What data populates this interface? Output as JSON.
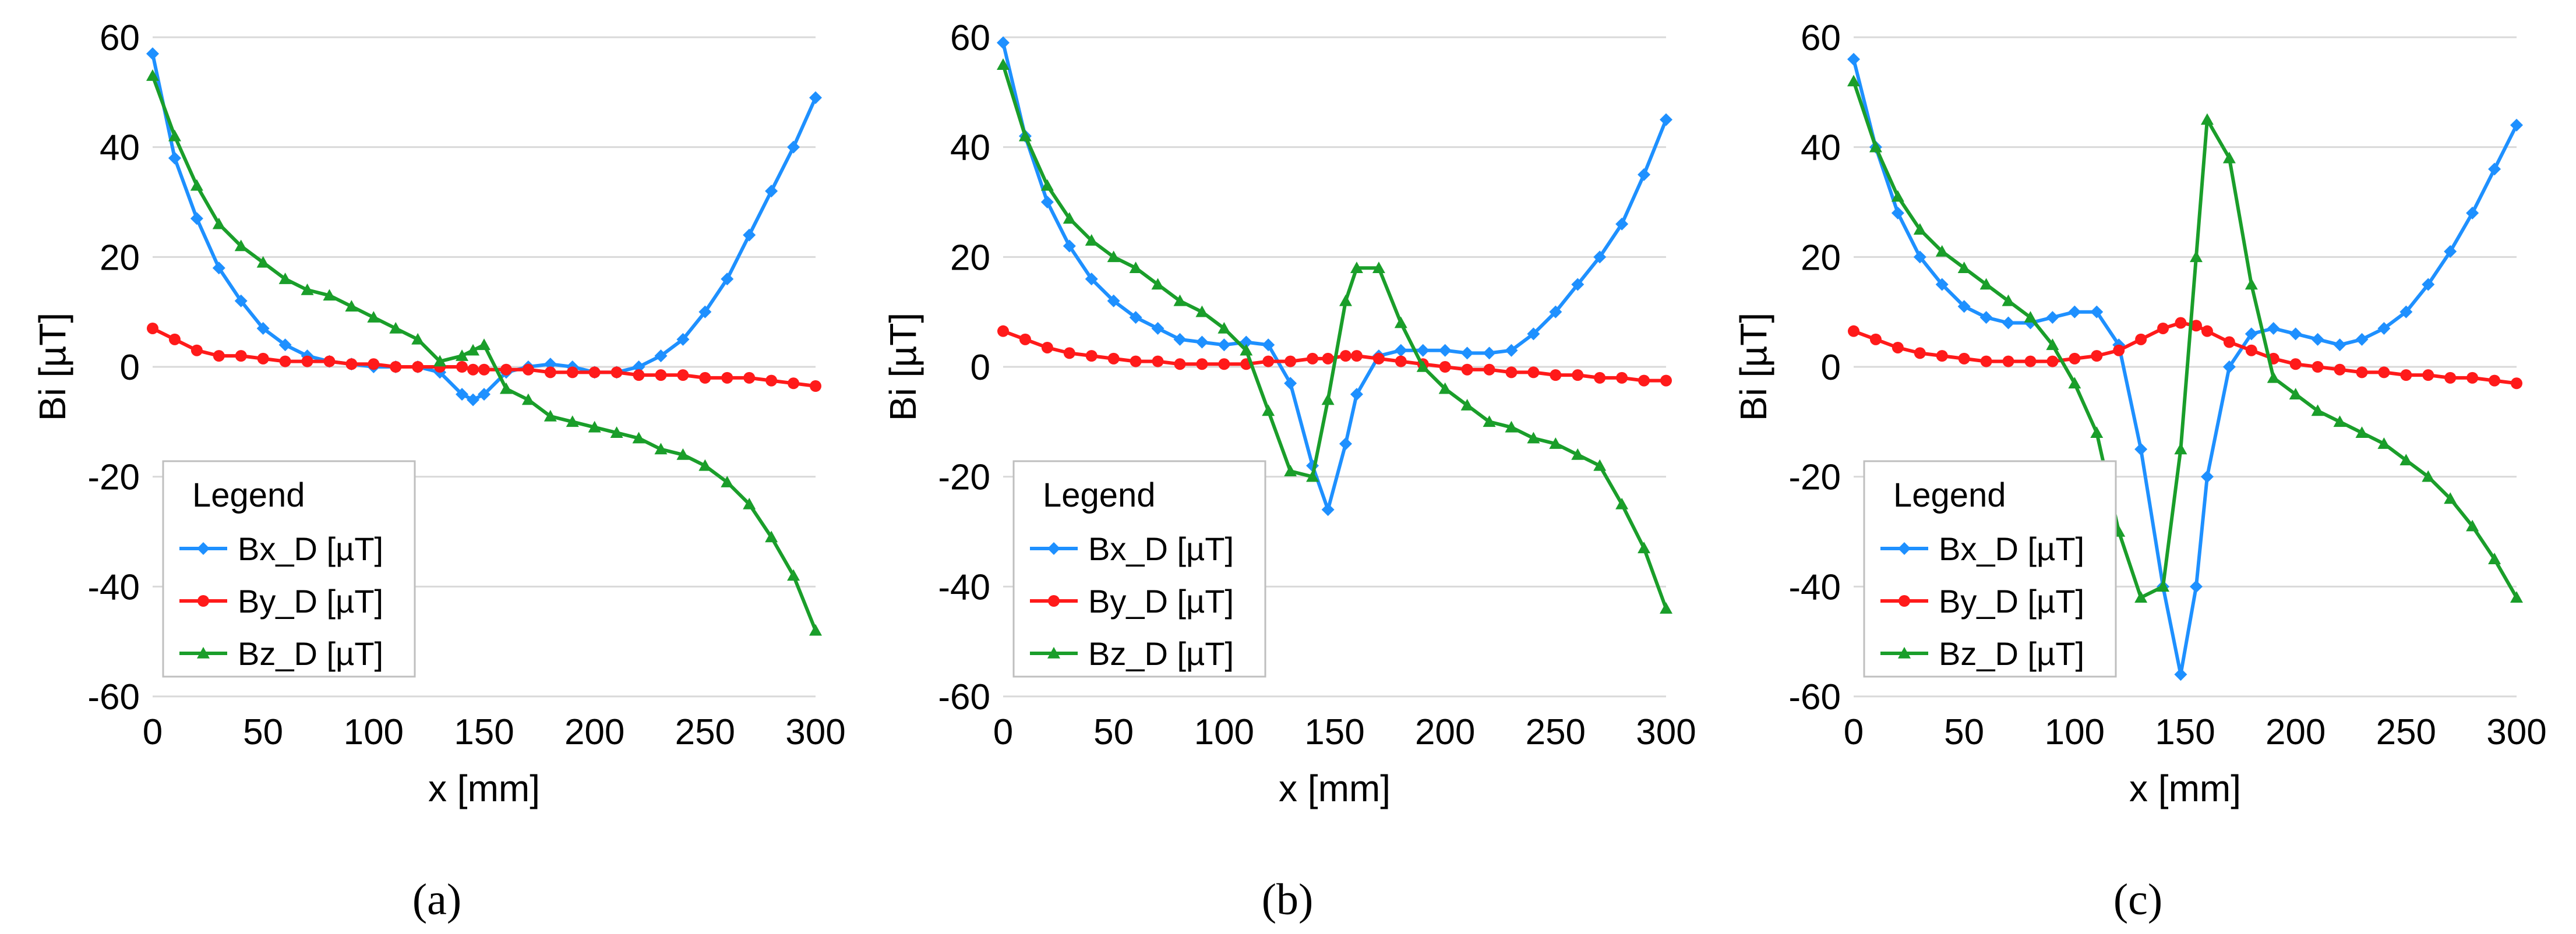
{
  "figure": {
    "panel_labels": [
      "(a)",
      "(b)",
      "(c)"
    ]
  },
  "chart_data": [
    {
      "type": "line",
      "panel": "(a)",
      "xlabel": "x [mm]",
      "ylabel": "Bi [µT]",
      "xlim": [
        0,
        300
      ],
      "ylim": [
        -60,
        60
      ],
      "xticks": [
        0,
        50,
        100,
        150,
        200,
        250,
        300
      ],
      "yticks": [
        -60,
        -40,
        -20,
        0,
        20,
        40,
        60
      ],
      "grid": true,
      "legend": {
        "title": "Legend",
        "placement": "bottom-left"
      },
      "x": [
        0,
        10,
        20,
        30,
        40,
        50,
        60,
        70,
        80,
        90,
        100,
        110,
        120,
        130,
        140,
        145,
        150,
        160,
        170,
        180,
        190,
        200,
        210,
        220,
        230,
        240,
        250,
        260,
        270,
        280,
        290,
        300
      ],
      "series": [
        {
          "name": "Bx_D [µT]",
          "color": "#1e90ff",
          "marker": "diamond",
          "values": [
            57,
            38,
            27,
            18,
            12,
            7,
            4,
            2,
            1,
            0.5,
            0,
            0,
            0,
            -1,
            -5,
            -6,
            -5,
            -1,
            0,
            0.5,
            0,
            -1,
            -1,
            0,
            2,
            5,
            10,
            16,
            24,
            32,
            40,
            49
          ]
        },
        {
          "name": "By_D [µT]",
          "color": "#ff1a1a",
          "marker": "circle",
          "values": [
            7,
            5,
            3,
            2,
            2,
            1.5,
            1,
            1,
            1,
            0.5,
            0.5,
            0,
            0,
            0,
            0,
            -0.5,
            -0.5,
            -0.5,
            -0.5,
            -1,
            -1,
            -1,
            -1,
            -1.5,
            -1.5,
            -1.5,
            -2,
            -2,
            -2,
            -2.5,
            -3,
            -3.5
          ]
        },
        {
          "name": "Bz_D [µT]",
          "color": "#1a9e2a",
          "marker": "triangle",
          "values": [
            53,
            42,
            33,
            26,
            22,
            19,
            16,
            14,
            13,
            11,
            9,
            7,
            5,
            1,
            2,
            3,
            4,
            -4,
            -6,
            -9,
            -10,
            -11,
            -12,
            -13,
            -15,
            -16,
            -18,
            -21,
            -25,
            -31,
            -38,
            -48
          ]
        }
      ]
    },
    {
      "type": "line",
      "panel": "(b)",
      "xlabel": "x [mm]",
      "ylabel": "Bi [µT]",
      "xlim": [
        0,
        300
      ],
      "ylim": [
        -60,
        60
      ],
      "xticks": [
        0,
        50,
        100,
        150,
        200,
        250,
        300
      ],
      "yticks": [
        -60,
        -40,
        -20,
        0,
        20,
        40,
        60
      ],
      "grid": true,
      "legend": {
        "title": "Legend",
        "placement": "bottom-left"
      },
      "x": [
        0,
        10,
        20,
        30,
        40,
        50,
        60,
        70,
        80,
        90,
        100,
        110,
        120,
        130,
        140,
        147,
        155,
        160,
        170,
        180,
        190,
        200,
        210,
        220,
        230,
        240,
        250,
        260,
        270,
        280,
        290,
        300
      ],
      "series": [
        {
          "name": "Bx_D [µT]",
          "color": "#1e90ff",
          "marker": "diamond",
          "values": [
            59,
            42,
            30,
            22,
            16,
            12,
            9,
            7,
            5,
            4.5,
            4,
            4.5,
            4,
            -3,
            -18,
            -26,
            -14,
            -5,
            2,
            3,
            3,
            3,
            2.5,
            2.5,
            3,
            6,
            10,
            15,
            20,
            26,
            35,
            45
          ]
        },
        {
          "name": "By_D [µT]",
          "color": "#ff1a1a",
          "marker": "circle",
          "values": [
            6.5,
            5,
            3.5,
            2.5,
            2,
            1.5,
            1,
            1,
            0.5,
            0.5,
            0.5,
            0.5,
            1,
            1,
            1.5,
            1.5,
            2,
            2,
            1.5,
            1,
            0.5,
            0,
            -0.5,
            -0.5,
            -1,
            -1,
            -1.5,
            -1.5,
            -2,
            -2,
            -2.5,
            -2.5
          ]
        },
        {
          "name": "Bz_D [µT]",
          "color": "#1a9e2a",
          "marker": "triangle",
          "values": [
            55,
            42,
            33,
            27,
            23,
            20,
            18,
            15,
            12,
            10,
            7,
            3,
            -8,
            -19,
            -20,
            -6,
            12,
            18,
            18,
            8,
            0,
            -4,
            -7,
            -10,
            -11,
            -13,
            -14,
            -16,
            -18,
            -25,
            -33,
            -44
          ]
        }
      ]
    },
    {
      "type": "line",
      "panel": "(c)",
      "xlabel": "x [mm]",
      "ylabel": "Bi [µT]",
      "xlim": [
        0,
        300
      ],
      "ylim": [
        -60,
        60
      ],
      "xticks": [
        0,
        50,
        100,
        150,
        200,
        250,
        300
      ],
      "yticks": [
        -60,
        -40,
        -20,
        0,
        20,
        40,
        60
      ],
      "grid": true,
      "legend": {
        "title": "Legend",
        "placement": "bottom-left"
      },
      "x": [
        0,
        10,
        20,
        30,
        40,
        50,
        60,
        70,
        80,
        90,
        100,
        110,
        120,
        130,
        140,
        148,
        155,
        160,
        170,
        180,
        190,
        200,
        210,
        220,
        230,
        240,
        250,
        260,
        270,
        280,
        290,
        300
      ],
      "series": [
        {
          "name": "Bx_D [µT]",
          "color": "#1e90ff",
          "marker": "diamond",
          "values": [
            56,
            40,
            28,
            20,
            15,
            11,
            9,
            8,
            8,
            9,
            10,
            10,
            4,
            -15,
            -40,
            -56,
            -40,
            -20,
            0,
            6,
            7,
            6,
            5,
            4,
            5,
            7,
            10,
            15,
            21,
            28,
            36,
            44
          ]
        },
        {
          "name": "By_D [µT]",
          "color": "#ff1a1a",
          "marker": "circle",
          "values": [
            6.5,
            5,
            3.5,
            2.5,
            2,
            1.5,
            1,
            1,
            1,
            1,
            1.5,
            2,
            3,
            5,
            7,
            8,
            7.5,
            6.5,
            4.5,
            3,
            1.5,
            0.5,
            0,
            -0.5,
            -1,
            -1,
            -1.5,
            -1.5,
            -2,
            -2,
            -2.5,
            -3
          ]
        },
        {
          "name": "Bz_D [µT]",
          "color": "#1a9e2a",
          "marker": "triangle",
          "values": [
            52,
            40,
            31,
            25,
            21,
            18,
            15,
            12,
            9,
            4,
            -3,
            -12,
            -30,
            -42,
            -40,
            -15,
            20,
            45,
            38,
            15,
            -2,
            -5,
            -8,
            -10,
            -12,
            -14,
            -17,
            -20,
            -24,
            -29,
            -35,
            -42
          ]
        }
      ]
    }
  ]
}
